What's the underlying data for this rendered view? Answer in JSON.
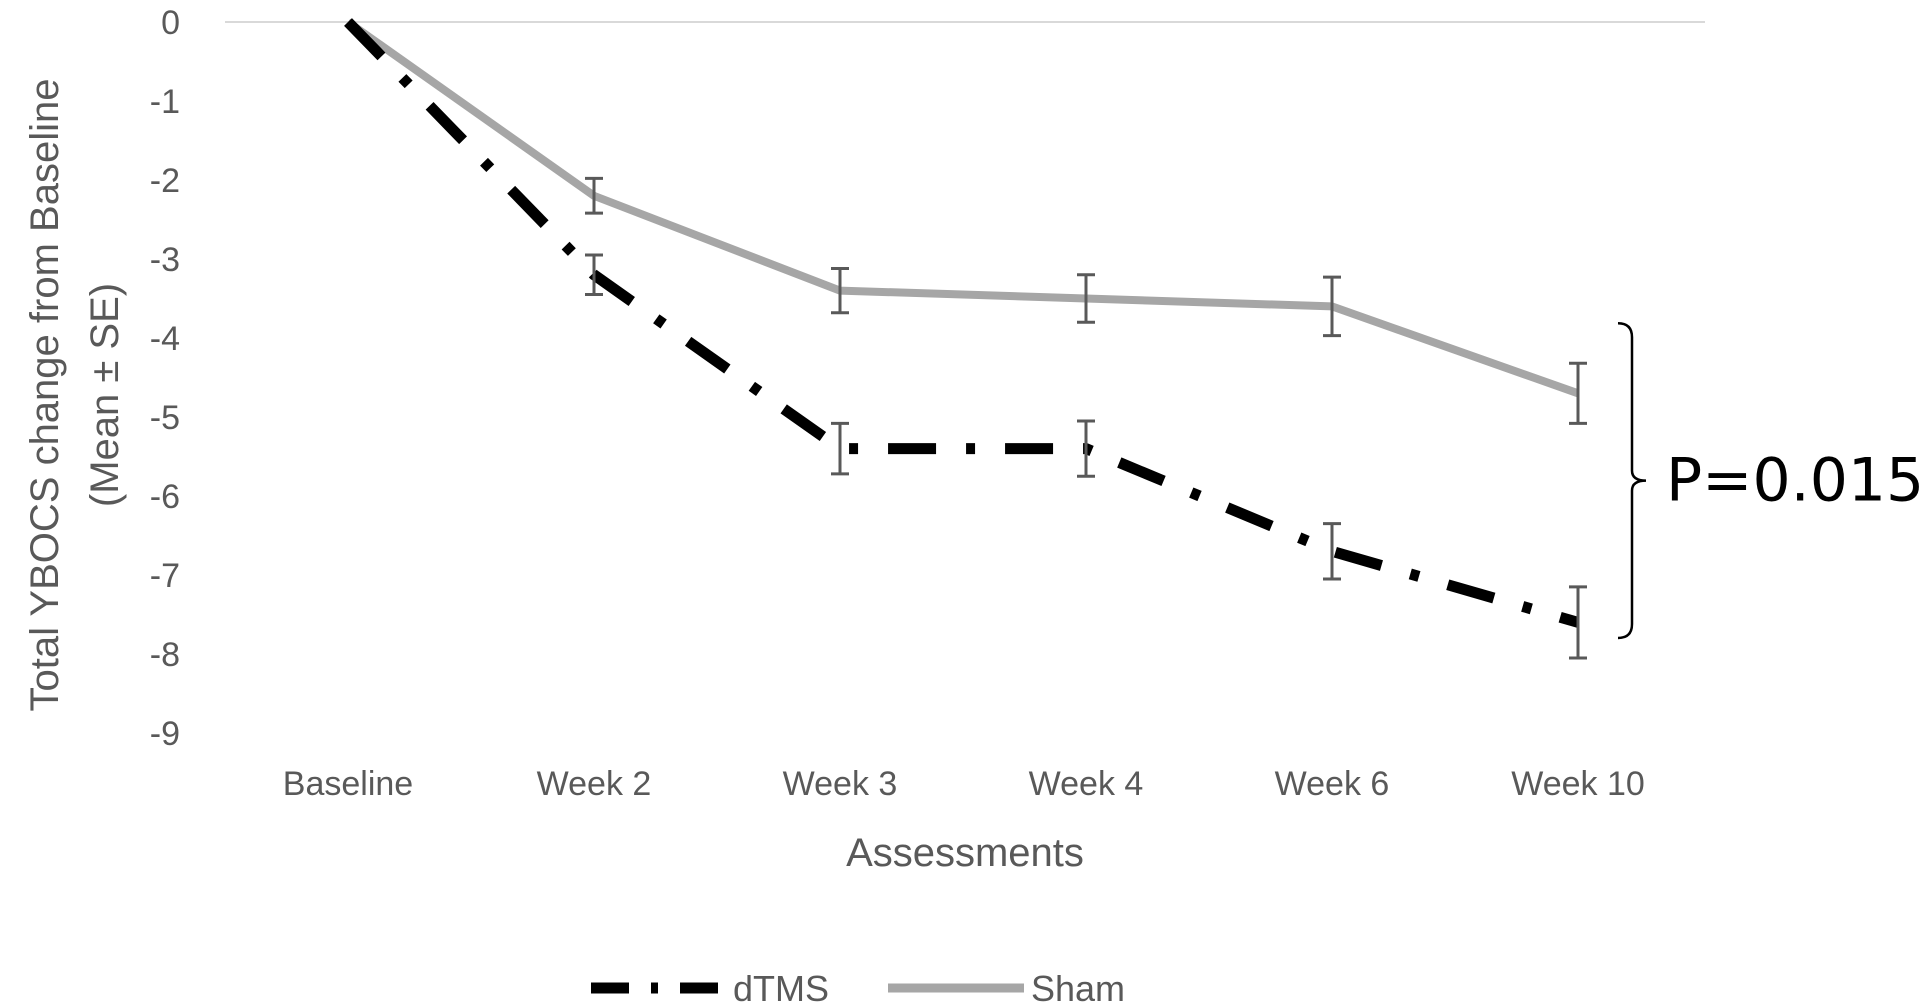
{
  "chart_data": {
    "type": "line",
    "title": "",
    "xlabel": "Assessments",
    "ylabel_line1": "Total YBOCS change from Baseline",
    "ylabel_line2": "(Mean ± SE)",
    "categories": [
      "Baseline",
      "Week 2",
      "Week 3",
      "Week 4",
      "Week 6",
      "Week 10"
    ],
    "ylim": [
      -9,
      0
    ],
    "yticks": [
      0,
      -1,
      -2,
      -3,
      -4,
      -5,
      -6,
      -7,
      -8,
      -9
    ],
    "grid": "top baseline only",
    "legend_position": "bottom",
    "series": [
      {
        "name": "dTMS",
        "color": "#000000",
        "line_style": "dash-dot",
        "values": [
          0,
          -3.2,
          -5.4,
          -5.4,
          -6.7,
          -7.6
        ],
        "se": [
          0,
          0.25,
          0.32,
          0.35,
          0.35,
          0.45
        ]
      },
      {
        "name": "Sham",
        "color": "#a6a6a6",
        "line_style": "solid",
        "values": [
          0,
          -2.2,
          -3.4,
          -3.5,
          -3.6,
          -4.7
        ],
        "se": [
          0,
          0.22,
          0.28,
          0.3,
          0.37,
          0.38
        ]
      }
    ],
    "annotations": [
      {
        "text": "P=0.015",
        "between_series": [
          "dTMS",
          "Sham"
        ],
        "at_category": "Week 10",
        "marker": "curly-brace"
      }
    ],
    "errorbar_color": "#595959"
  }
}
